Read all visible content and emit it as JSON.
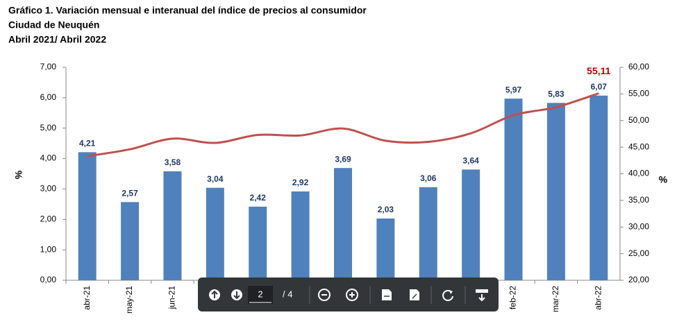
{
  "chart_data": {
    "type": "bar",
    "title": "Gráfico 1. Variación mensual e interanual del índice de precios al consumidor",
    "subtitle": "Ciudad de Neuquén",
    "period": "Abril 2021/ Abril 2022",
    "ylabel": "%",
    "y2label": "%",
    "categories": [
      "abr-21",
      "may-21",
      "jun-21",
      null,
      null,
      null,
      null,
      null,
      null,
      null,
      "feb-22",
      "mar-22",
      "abr-22"
    ],
    "series": [
      {
        "type": "bar",
        "color": "#4f81bd",
        "label_color": "#1f3864",
        "values": [
          4.21,
          2.57,
          3.58,
          3.04,
          2.42,
          2.92,
          3.69,
          2.03,
          3.06,
          3.64,
          5.97,
          5.83,
          6.07
        ],
        "value_labels": [
          "4,21",
          "2,57",
          "3,58",
          "3,04",
          "2,42",
          "2,92",
          "3,69",
          "2,03",
          "3,06",
          "3,64",
          "5,97",
          "5,83",
          "6,07"
        ]
      },
      {
        "type": "line",
        "axis": "y2",
        "color": "#c0504d",
        "label_color": "#c00000",
        "values": [
          43.3,
          44.6,
          46.6,
          45.8,
          47.3,
          47.2,
          48.5,
          46.2,
          46.0,
          47.6,
          51.0,
          52.5,
          55.11
        ],
        "value_labels": [
          null,
          null,
          null,
          null,
          null,
          null,
          null,
          null,
          null,
          null,
          null,
          null,
          "55,11"
        ]
      }
    ],
    "ylim": [
      0,
      7
    ],
    "yticks": [
      {
        "value": 0,
        "label": "0,00"
      },
      {
        "value": 1,
        "label": "1,00"
      },
      {
        "value": 2,
        "label": "2,00"
      },
      {
        "value": 3,
        "label": "3,00"
      },
      {
        "value": 4,
        "label": "4,00"
      },
      {
        "value": 5,
        "label": "5,00"
      },
      {
        "value": 6,
        "label": "6,00"
      },
      {
        "value": 7,
        "label": "7,00"
      }
    ],
    "y2lim": [
      20,
      60
    ],
    "y2ticks": [
      {
        "value": 20,
        "label": "20,00"
      },
      {
        "value": 25,
        "label": "25,00"
      },
      {
        "value": 30,
        "label": "30,00"
      },
      {
        "value": 35,
        "label": "35,00"
      },
      {
        "value": 40,
        "label": "40,00"
      },
      {
        "value": 45,
        "label": "45,00"
      },
      {
        "value": 50,
        "label": "50,00"
      },
      {
        "value": 55,
        "label": "55,00"
      },
      {
        "value": 60,
        "label": "60,00"
      }
    ],
    "grid": false
  },
  "toolbar": {
    "page": "2",
    "of": "/ 4"
  }
}
